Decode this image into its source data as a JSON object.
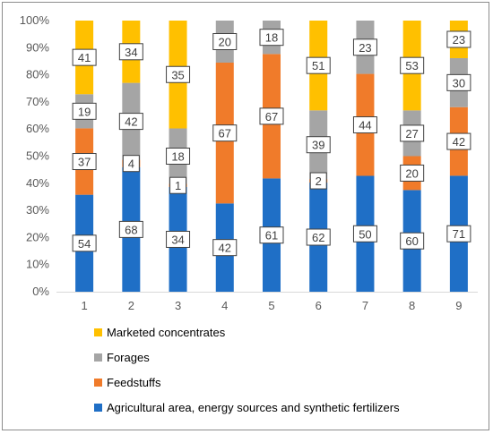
{
  "chart_data": {
    "type": "bar",
    "stacked": "percent",
    "categories": [
      "1",
      "2",
      "3",
      "4",
      "5",
      "6",
      "7",
      "8",
      "9"
    ],
    "y_ticks": [
      "0%",
      "10%",
      "20%",
      "30%",
      "40%",
      "50%",
      "60%",
      "70%",
      "80%",
      "90%",
      "100%"
    ],
    "ylim": [
      0,
      100
    ],
    "grid": false,
    "legend_position": "bottom-left",
    "series": [
      {
        "name": "Agricultural area, energy sources and synthetic fertilizers",
        "color": "#1f6fc6",
        "values": [
          54,
          68,
          34,
          42,
          61,
          62,
          50,
          60,
          71
        ]
      },
      {
        "name": "Feedstuffs",
        "color": "#f07b2a",
        "values": [
          37,
          4,
          1,
          67,
          67,
          2,
          44,
          20,
          42
        ]
      },
      {
        "name": "Forages",
        "color": "#a5a5a5",
        "values": [
          19,
          42,
          18,
          20,
          18,
          39,
          23,
          27,
          30
        ]
      },
      {
        "name": "Marketed concentrates",
        "color": "#ffc000",
        "values": [
          41,
          34,
          35,
          0,
          0,
          51,
          0,
          53,
          23
        ]
      }
    ],
    "legend_order": [
      3,
      2,
      1,
      0
    ]
  }
}
